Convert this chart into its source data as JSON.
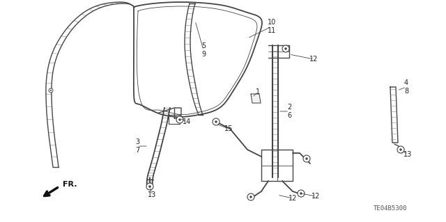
{
  "bg_color": "#ffffff",
  "diagram_id": "TE04B5300",
  "line_color": "#444444",
  "lw": 1.0,
  "font_size": 7.0,
  "annotation_color": "#222222"
}
